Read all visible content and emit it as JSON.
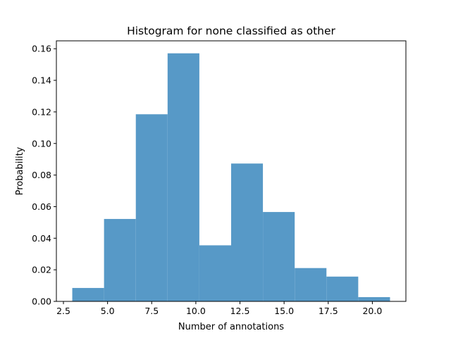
{
  "chart_data": {
    "type": "bar",
    "title": "Histogram for none classified as other",
    "xlabel": "Number of annotations",
    "ylabel": "Probability",
    "xlim": [
      2.1,
      21.9
    ],
    "ylim": [
      0,
      0.165
    ],
    "bar_color": "#5799c7",
    "grid": false,
    "bins": [
      {
        "x0": 3.0,
        "x1": 4.8,
        "value": 0.0085
      },
      {
        "x0": 4.8,
        "x1": 6.6,
        "value": 0.0522
      },
      {
        "x0": 6.6,
        "x1": 8.4,
        "value": 0.1185
      },
      {
        "x0": 8.4,
        "x1": 10.2,
        "value": 0.1571
      },
      {
        "x0": 10.2,
        "x1": 12.0,
        "value": 0.0355
      },
      {
        "x0": 12.0,
        "x1": 13.8,
        "value": 0.0873
      },
      {
        "x0": 13.8,
        "x1": 15.6,
        "value": 0.0566
      },
      {
        "x0": 15.6,
        "x1": 17.4,
        "value": 0.0211
      },
      {
        "x0": 17.4,
        "x1": 19.2,
        "value": 0.0157
      },
      {
        "x0": 19.2,
        "x1": 21.0,
        "value": 0.0027
      }
    ],
    "x_ticks": [
      {
        "value": 2.5,
        "label": "2.5"
      },
      {
        "value": 5.0,
        "label": "5.0"
      },
      {
        "value": 7.5,
        "label": "7.5"
      },
      {
        "value": 10.0,
        "label": "10.0"
      },
      {
        "value": 12.5,
        "label": "12.5"
      },
      {
        "value": 15.0,
        "label": "15.0"
      },
      {
        "value": 17.5,
        "label": "17.5"
      },
      {
        "value": 20.0,
        "label": "20.0"
      }
    ],
    "y_ticks": [
      {
        "value": 0.0,
        "label": "0.00"
      },
      {
        "value": 0.02,
        "label": "0.02"
      },
      {
        "value": 0.04,
        "label": "0.04"
      },
      {
        "value": 0.06,
        "label": "0.06"
      },
      {
        "value": 0.08,
        "label": "0.08"
      },
      {
        "value": 0.1,
        "label": "0.10"
      },
      {
        "value": 0.12,
        "label": "0.12"
      },
      {
        "value": 0.14,
        "label": "0.14"
      },
      {
        "value": 0.16,
        "label": "0.16"
      }
    ]
  }
}
